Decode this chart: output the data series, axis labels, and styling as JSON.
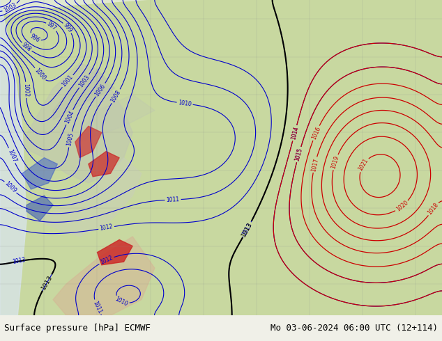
{
  "title_left": "Surface pressure [hPa] ECMWF",
  "title_right": "Mo 03-06-2024 06:00 UTC (12+114)",
  "bg_color": "#f0f0e8",
  "map_bg_green": "#c8d8a0",
  "map_bg_light": "#e8ede0",
  "bottom_bar_color": "#d8d8d0",
  "text_color_black": "#000000",
  "text_color_blue": "#0000cc",
  "text_color_red": "#cc0000",
  "contour_blue": "#0000cc",
  "contour_red": "#cc0000",
  "contour_black": "#000000",
  "fig_width": 6.34,
  "fig_height": 4.9,
  "dpi": 100
}
